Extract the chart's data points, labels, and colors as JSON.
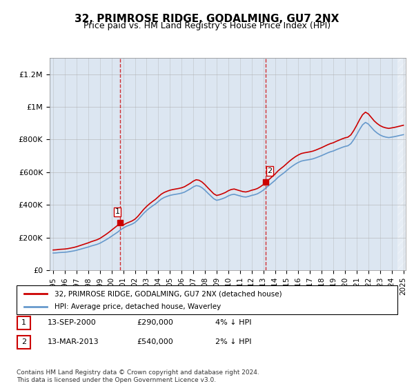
{
  "title": "32, PRIMROSE RIDGE, GODALMING, GU7 2NX",
  "subtitle": "Price paid vs. HM Land Registry's House Price Index (HPI)",
  "background_color": "#dce6f1",
  "plot_bg_color": "#dce6f1",
  "hatch_color": "#c0cfe0",
  "grid_color": "#aaaaaa",
  "red_line_color": "#cc0000",
  "blue_line_color": "#6699cc",
  "ylim": [
    0,
    1300000
  ],
  "yticks": [
    0,
    200000,
    400000,
    600000,
    800000,
    1000000,
    1200000
  ],
  "ytick_labels": [
    "£0",
    "£200K",
    "£400K",
    "£600K",
    "£800K",
    "£1M",
    "£1.2M"
  ],
  "sale1_x": 2000.7,
  "sale1_y": 290000,
  "sale1_label": "1",
  "sale2_x": 2013.2,
  "sale2_y": 540000,
  "sale2_label": "2",
  "vline1_x": 2000.7,
  "vline2_x": 2013.2,
  "legend_entries": [
    "32, PRIMROSE RIDGE, GODALMING, GU7 2NX (detached house)",
    "HPI: Average price, detached house, Waverley"
  ],
  "table_rows": [
    [
      "1",
      "13-SEP-2000",
      "£290,000",
      "4% ↓ HPI"
    ],
    [
      "2",
      "13-MAR-2013",
      "£540,000",
      "2% ↓ HPI"
    ]
  ],
  "footnote": "Contains HM Land Registry data © Crown copyright and database right 2024.\nThis data is licensed under the Open Government Licence v3.0.",
  "xticks": [
    1995,
    1996,
    1997,
    1998,
    1999,
    2000,
    2001,
    2002,
    2003,
    2004,
    2005,
    2006,
    2007,
    2008,
    2009,
    2010,
    2011,
    2012,
    2013,
    2014,
    2015,
    2016,
    2017,
    2018,
    2019,
    2020,
    2021,
    2022,
    2023,
    2024,
    2025
  ]
}
